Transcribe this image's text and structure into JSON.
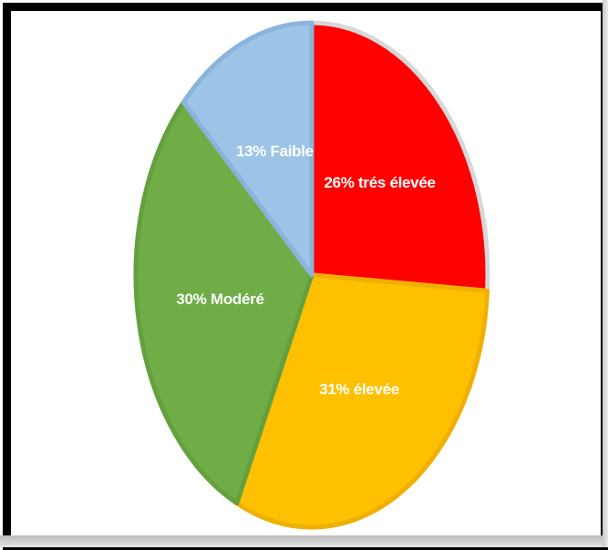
{
  "chart_data": {
    "type": "pie",
    "title": "",
    "start": "top",
    "direction": "clockwise",
    "slices": [
      {
        "label": "26% trés élevée",
        "value": 26,
        "color": "#ff0000",
        "border": "#d8d8d8"
      },
      {
        "label": "31% élevée",
        "value": 31,
        "color": "#ffc000",
        "border": "#f0b000"
      },
      {
        "label": "30% Modéré",
        "value": 30,
        "color": "#70ad47",
        "border": "#65a03e"
      },
      {
        "label": "13% Faible",
        "value": 13,
        "color": "#9dc3e6",
        "border": "#8bb4dc"
      }
    ]
  }
}
